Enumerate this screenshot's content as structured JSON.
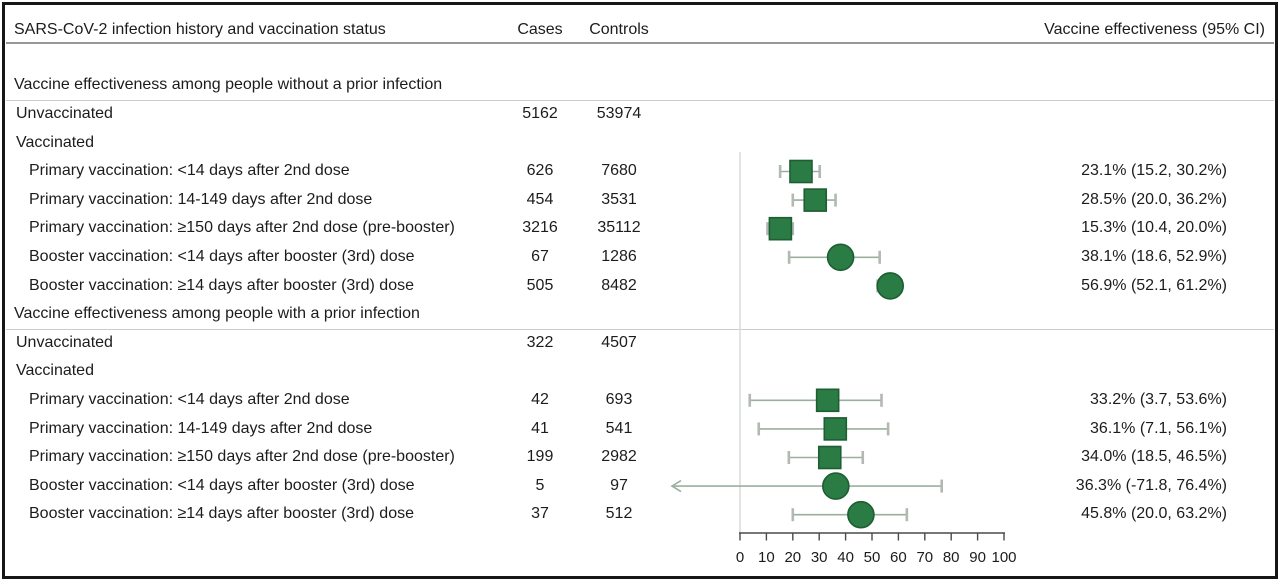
{
  "header": {
    "col_label": "SARS-CoV-2 infection history and vaccination status",
    "col_cases": "Cases",
    "col_controls": "Controls",
    "col_ve": "Vaccine effectiveness (95% CI)"
  },
  "colors": {
    "marker_green": "#2b7b44",
    "marker_border": "#1d5e33",
    "whisker": "#9aaf9e",
    "whisker_cap": "#b2b8b2",
    "zero_line": "#d8dbd8",
    "axis": "#4a4a4a",
    "header_line": "#989898",
    "section_line": "#cccccc",
    "frame": "#161616"
  },
  "chart_data": {
    "type": "forest",
    "title": "",
    "xlabel": "",
    "xlim": [
      0,
      100
    ],
    "x_ticks": [
      0,
      10,
      20,
      30,
      40,
      50,
      60,
      70,
      80,
      90,
      100
    ],
    "columns": [
      "SARS-CoV-2 infection history and vaccination status",
      "Cases",
      "Controls",
      "Vaccine effectiveness (95% CI)"
    ],
    "groups": [
      {
        "title": "Vaccine effectiveness among people without a prior infection",
        "rows": [
          {
            "label": "Unvaccinated",
            "indent": 1,
            "cases": "5162",
            "controls": "53974"
          },
          {
            "label": "Vaccinated",
            "indent": 1
          },
          {
            "label": "Primary vaccination: <14 days after 2nd dose",
            "indent": 2,
            "cases": "626",
            "controls": "7680",
            "ve_text": "23.1% (15.2, 30.2%)",
            "est": 23.1,
            "lo": 15.2,
            "hi": 30.2,
            "marker": "square"
          },
          {
            "label": "Primary vaccination: 14-149 days after 2nd dose",
            "indent": 2,
            "cases": "454",
            "controls": "3531",
            "ve_text": "28.5% (20.0, 36.2%)",
            "est": 28.5,
            "lo": 20.0,
            "hi": 36.2,
            "marker": "square"
          },
          {
            "label": "Primary vaccination: ≥150 days after 2nd dose (pre-booster)",
            "indent": 2,
            "cases": "3216",
            "controls": "35112",
            "ve_text": "15.3% (10.4, 20.0%)",
            "est": 15.3,
            "lo": 10.4,
            "hi": 20.0,
            "marker": "square"
          },
          {
            "label": "Booster vaccination: <14 days after booster (3rd) dose",
            "indent": 2,
            "cases": "67",
            "controls": "1286",
            "ve_text": "38.1% (18.6, 52.9%)",
            "est": 38.1,
            "lo": 18.6,
            "hi": 52.9,
            "marker": "circle"
          },
          {
            "label": "Booster vaccination: ≥14 days after booster (3rd) dose",
            "indent": 2,
            "cases": "505",
            "controls": "8482",
            "ve_text": "56.9% (52.1, 61.2%)",
            "est": 56.9,
            "lo": 52.1,
            "hi": 61.2,
            "marker": "circle"
          }
        ]
      },
      {
        "title": "Vaccine effectiveness among people with a prior infection",
        "rows": [
          {
            "label": "Unvaccinated",
            "indent": 1,
            "cases": "322",
            "controls": "4507"
          },
          {
            "label": "Vaccinated",
            "indent": 1
          },
          {
            "label": "Primary vaccination: <14 days after 2nd dose",
            "indent": 2,
            "cases": "42",
            "controls": "693",
            "ve_text": "33.2% (3.7, 53.6%)",
            "est": 33.2,
            "lo": 3.7,
            "hi": 53.6,
            "marker": "square"
          },
          {
            "label": "Primary vaccination: 14-149 days after 2nd dose",
            "indent": 2,
            "cases": "41",
            "controls": "541",
            "ve_text": "36.1% (7.1, 56.1%)",
            "est": 36.1,
            "lo": 7.1,
            "hi": 56.1,
            "marker": "square"
          },
          {
            "label": "Primary vaccination: ≥150 days after 2nd dose (pre-booster)",
            "indent": 2,
            "cases": "199",
            "controls": "2982",
            "ve_text": "34.0% (18.5, 46.5%)",
            "est": 34.0,
            "lo": 18.5,
            "hi": 46.5,
            "marker": "square"
          },
          {
            "label": "Booster vaccination: <14 days after booster (3rd) dose",
            "indent": 2,
            "cases": "5",
            "controls": "97",
            "ve_text": "36.3% (-71.8, 76.4%)",
            "est": 36.3,
            "lo": -71.8,
            "hi": 76.4,
            "marker": "circle"
          },
          {
            "label": "Booster vaccination: ≥14 days after booster (3rd) dose",
            "indent": 2,
            "cases": "37",
            "controls": "512",
            "ve_text": "45.8% (20.0, 63.2%)",
            "est": 45.8,
            "lo": 20.0,
            "hi": 63.2,
            "marker": "circle"
          }
        ]
      }
    ]
  }
}
